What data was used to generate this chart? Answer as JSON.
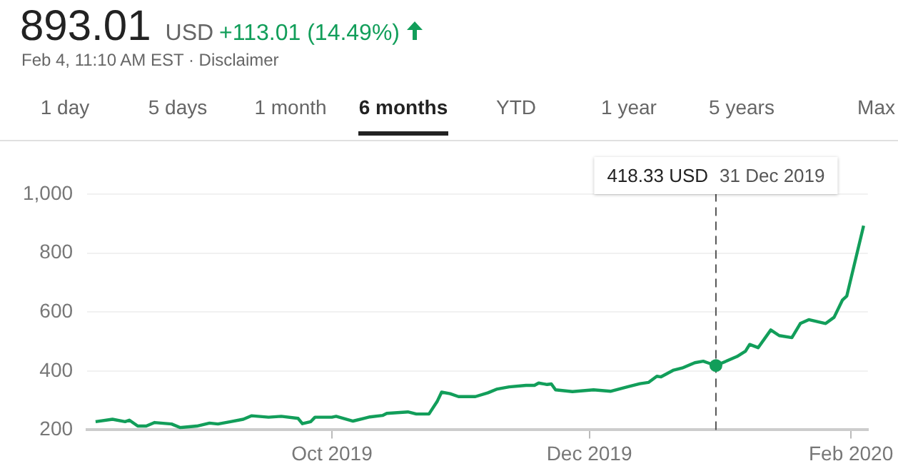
{
  "chart_data": {
    "type": "line",
    "title": "893.01",
    "subtitle": "Feb 4, 11:10 AM EST · Disclaimer",
    "annotations": [
      "USD",
      "+113.01 (14.49%)",
      "1 day",
      "5 days",
      "1 month",
      "6 months",
      "YTD",
      "1 year",
      "5 years",
      "Max",
      "418.33 USD",
      "31 Dec 2019"
    ],
    "x": [
      "2019-08-06",
      "2019-08-10",
      "2019-08-13",
      "2019-08-14",
      "2019-08-16",
      "2019-08-18",
      "2019-08-20",
      "2019-08-24",
      "2019-08-26",
      "2019-08-30",
      "2019-09-02",
      "2019-09-04",
      "2019-09-07",
      "2019-09-10",
      "2019-09-12",
      "2019-09-16",
      "2019-09-19",
      "2019-09-23",
      "2019-09-24",
      "2019-09-26",
      "2019-09-27",
      "2019-10-01",
      "2019-10-02",
      "2019-10-06",
      "2019-10-10",
      "2019-10-13",
      "2019-10-14",
      "2019-10-19",
      "2019-10-21",
      "2019-10-24",
      "2019-10-26",
      "2019-10-27",
      "2019-10-29",
      "2019-10-31",
      "2019-11-04",
      "2019-11-07",
      "2019-11-09",
      "2019-11-12",
      "2019-11-16",
      "2019-11-18",
      "2019-11-19",
      "2019-11-21",
      "2019-11-22",
      "2019-11-23",
      "2019-11-27",
      "2019-12-02",
      "2019-12-06",
      "2019-12-10",
      "2019-12-13",
      "2019-12-15",
      "2019-12-17",
      "2019-12-18",
      "2019-12-21",
      "2019-12-23",
      "2019-12-26",
      "2019-12-28",
      "2019-12-29",
      "2019-12-31",
      "2020-01-05",
      "2020-01-07",
      "2020-01-08",
      "2020-01-10",
      "2020-01-13",
      "2020-01-15",
      "2020-01-18",
      "2020-01-20",
      "2020-01-22",
      "2020-01-26",
      "2020-01-28",
      "2020-01-30",
      "2020-01-31",
      "2020-02-04"
    ],
    "series": [
      {
        "color": "#129e5a",
        "values": [
          228,
          236,
          228,
          233,
          213,
          213,
          225,
          220,
          208,
          213,
          223,
          220,
          228,
          236,
          248,
          243,
          246,
          239,
          221,
          228,
          243,
          243,
          246,
          230,
          244,
          249,
          256,
          261,
          254,
          254,
          298,
          328,
          323,
          313,
          313,
          326,
          338,
          346,
          351,
          351,
          359,
          354,
          356,
          336,
          330,
          336,
          331,
          346,
          357,
          361,
          382,
          380,
          403,
          410,
          428,
          433,
          428,
          418.33,
          449,
          467,
          490,
          479,
          539,
          520,
          513,
          561,
          574,
          561,
          582,
          641,
          654,
          893.01
        ]
      }
    ],
    "xlim": [
      "2019-08-04",
      "2020-02-05"
    ],
    "xticks": [
      {
        "value": "2019-10-01",
        "label": "Oct 2019"
      },
      {
        "value": "2019-12-01",
        "label": "Dec 2019"
      },
      {
        "value": "2020-02-01",
        "label": "Feb 2020"
      }
    ],
    "ylim": [
      200,
      1000
    ],
    "yticks": [
      200,
      400,
      600,
      800,
      {
        "value": 1000,
        "label": "1,000"
      }
    ],
    "ref_lines": [
      {
        "axis": "x",
        "value": "2019-12-31",
        "line_style": "dashed",
        "color": "#555555"
      }
    ],
    "grid": "y",
    "legend": false,
    "marker": "none",
    "line_style": "solid"
  }
}
